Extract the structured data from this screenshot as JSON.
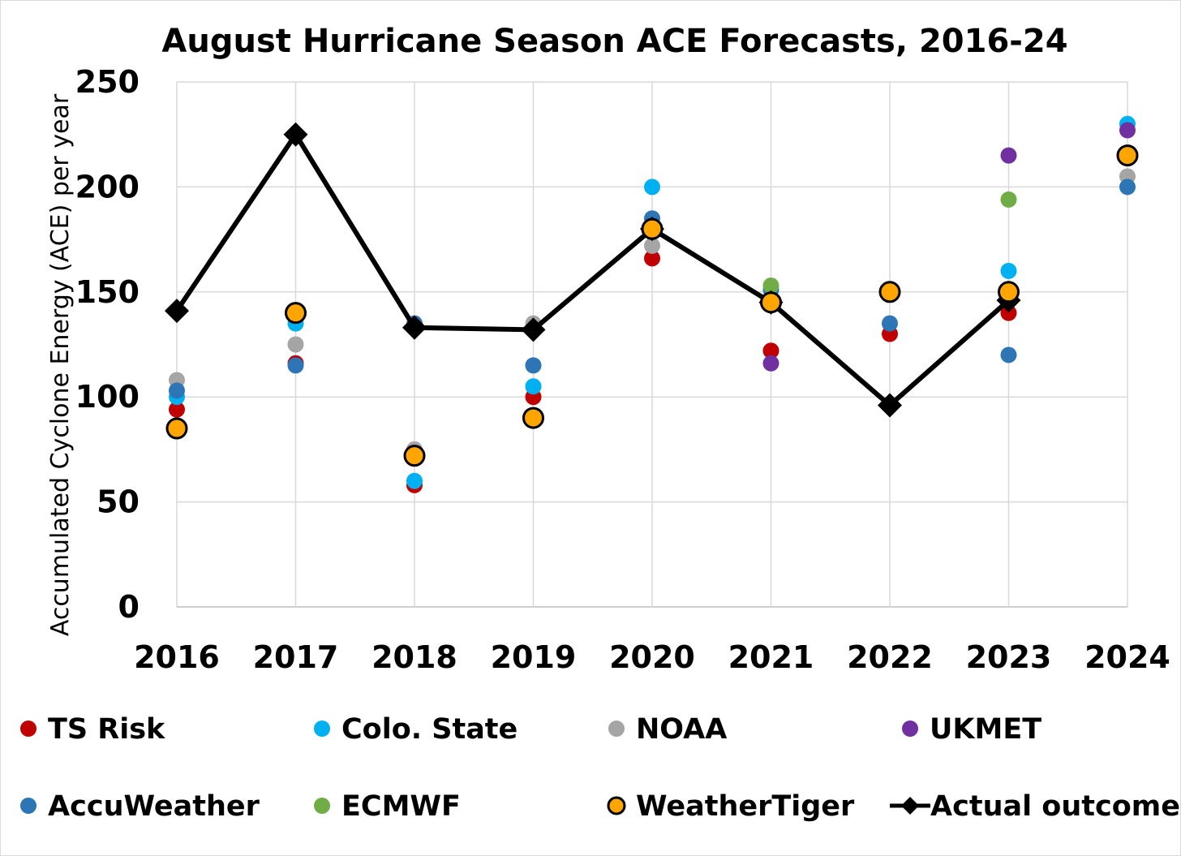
{
  "chart_data": {
    "type": "scatter",
    "title": "August Hurricane Season ACE Forecasts, 2016-24",
    "xlabel": "",
    "ylabel": "Accumulated Cyclone Energy (ACE) per year",
    "ylim": [
      0,
      250
    ],
    "yticks": [
      "0",
      "50",
      "100",
      "150",
      "200",
      "250"
    ],
    "categories": [
      "2016",
      "2017",
      "2018",
      "2019",
      "2020",
      "2021",
      "2022",
      "2023",
      "2024"
    ],
    "grid": true,
    "legend_position": "bottom",
    "series": [
      {
        "name": "TS Risk",
        "color": "#C00000",
        "marker": "circle",
        "values": [
          94,
          116,
          58,
          100,
          166,
          122,
          130,
          140,
          null
        ]
      },
      {
        "name": "Colo. State",
        "color": "#00B0F0",
        "marker": "circle",
        "values": [
          100,
          135,
          60,
          105,
          200,
          null,
          null,
          160,
          230
        ]
      },
      {
        "name": "NOAA",
        "color": "#A5A5A5",
        "marker": "circle",
        "values": [
          108,
          125,
          75,
          135,
          172,
          null,
          null,
          147,
          205
        ]
      },
      {
        "name": "UKMET",
        "color": "#7030A0",
        "marker": "circle",
        "values": [
          null,
          null,
          null,
          null,
          null,
          116,
          null,
          215,
          227
        ]
      },
      {
        "name": "AccuWeather",
        "color": "#2E75B6",
        "marker": "circle",
        "values": [
          103,
          115,
          135,
          115,
          185,
          151,
          135,
          120,
          200
        ]
      },
      {
        "name": "ECMWF",
        "color": "#70AD47",
        "marker": "circle",
        "values": [
          null,
          null,
          null,
          null,
          null,
          153,
          null,
          194,
          null
        ]
      },
      {
        "name": "WeatherTiger",
        "color": "#FFA500",
        "marker": "circle-outlined",
        "values": [
          85,
          140,
          72,
          90,
          180,
          145,
          150,
          150,
          215
        ]
      },
      {
        "name": "Actual outcome",
        "color": "#000000",
        "marker": "diamond-line",
        "values": [
          141,
          225,
          133,
          132,
          180,
          145,
          96,
          146,
          null
        ]
      }
    ]
  }
}
